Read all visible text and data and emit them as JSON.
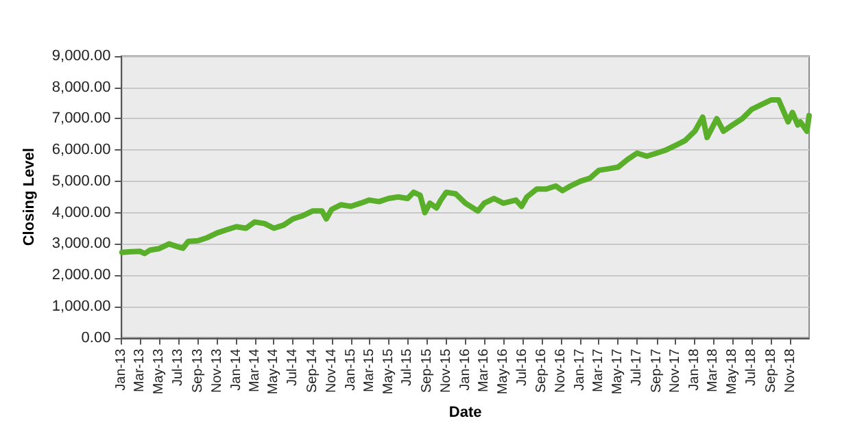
{
  "chart_data": {
    "type": "line",
    "xlabel": "Date",
    "ylabel": "Closing Level",
    "xlim": [
      "2013-01-01",
      "2018-12-31"
    ],
    "xticks": [
      {
        "value": "2013-01-01",
        "label": "Jan-13"
      },
      {
        "value": "2013-03-01",
        "label": "Mar-13"
      },
      {
        "value": "2013-05-01",
        "label": "May-13"
      },
      {
        "value": "2013-07-01",
        "label": "Jul-13"
      },
      {
        "value": "2013-09-01",
        "label": "Sep-13"
      },
      {
        "value": "2013-11-01",
        "label": "Nov-13"
      },
      {
        "value": "2014-01-01",
        "label": "Jan-14"
      },
      {
        "value": "2014-03-01",
        "label": "Mar-14"
      },
      {
        "value": "2014-05-01",
        "label": "May-14"
      },
      {
        "value": "2014-07-01",
        "label": "Jul-14"
      },
      {
        "value": "2014-09-01",
        "label": "Sep-14"
      },
      {
        "value": "2014-11-01",
        "label": "Nov-14"
      },
      {
        "value": "2015-01-01",
        "label": "Jan-15"
      },
      {
        "value": "2015-03-01",
        "label": "Mar-15"
      },
      {
        "value": "2015-05-01",
        "label": "May-15"
      },
      {
        "value": "2015-07-01",
        "label": "Jul-15"
      },
      {
        "value": "2015-09-01",
        "label": "Sep-15"
      },
      {
        "value": "2015-11-01",
        "label": "Nov-15"
      },
      {
        "value": "2016-01-01",
        "label": "Jan-16"
      },
      {
        "value": "2016-03-01",
        "label": "Mar-16"
      },
      {
        "value": "2016-05-01",
        "label": "May-16"
      },
      {
        "value": "2016-07-01",
        "label": "Jul-16"
      },
      {
        "value": "2016-09-01",
        "label": "Sep-16"
      },
      {
        "value": "2016-11-01",
        "label": "Nov-16"
      },
      {
        "value": "2017-01-01",
        "label": "Jan-17"
      },
      {
        "value": "2017-03-01",
        "label": "Mar-17"
      },
      {
        "value": "2017-05-01",
        "label": "May-17"
      },
      {
        "value": "2017-07-01",
        "label": "Jul-17"
      },
      {
        "value": "2017-09-01",
        "label": "Sep-17"
      },
      {
        "value": "2017-11-01",
        "label": "Nov-17"
      },
      {
        "value": "2018-01-01",
        "label": "Jan-18"
      },
      {
        "value": "2018-03-01",
        "label": "Mar-18"
      },
      {
        "value": "2018-05-01",
        "label": "May-18"
      },
      {
        "value": "2018-07-01",
        "label": "Jul-18"
      },
      {
        "value": "2018-09-01",
        "label": "Sep-18"
      },
      {
        "value": "2018-11-01",
        "label": "Nov-18"
      }
    ],
    "ylim": [
      0,
      9000
    ],
    "yticks": [
      {
        "value": 0,
        "label": "0.00"
      },
      {
        "value": 1000,
        "label": "1,000.00"
      },
      {
        "value": 2000,
        "label": "2,000.00"
      },
      {
        "value": 3000,
        "label": "3,000.00"
      },
      {
        "value": 4000,
        "label": "4,000.00"
      },
      {
        "value": 5000,
        "label": "5,000.00"
      },
      {
        "value": 6000,
        "label": "6,000.00"
      },
      {
        "value": 7000,
        "label": "7,000.00"
      },
      {
        "value": 8000,
        "label": "8,000.00"
      },
      {
        "value": 9000,
        "label": "9,000.00"
      }
    ],
    "grid": "y",
    "marker": "none",
    "line_style": "solid",
    "series": [
      {
        "color": "#5aaf2a",
        "x": [
          "2013-01-02",
          "2013-02-01",
          "2013-03-01",
          "2013-03-15",
          "2013-04-01",
          "2013-05-01",
          "2013-06-01",
          "2013-07-01",
          "2013-07-15",
          "2013-08-01",
          "2013-09-01",
          "2013-10-01",
          "2013-11-01",
          "2013-12-01",
          "2014-01-01",
          "2014-02-01",
          "2014-03-01",
          "2014-04-01",
          "2014-05-01",
          "2014-06-01",
          "2014-07-01",
          "2014-08-01",
          "2014-09-01",
          "2014-10-01",
          "2014-10-15",
          "2014-11-01",
          "2014-12-01",
          "2015-01-01",
          "2015-02-01",
          "2015-03-01",
          "2015-04-01",
          "2015-05-01",
          "2015-06-01",
          "2015-07-01",
          "2015-07-20",
          "2015-08-10",
          "2015-08-25",
          "2015-09-10",
          "2015-10-01",
          "2015-10-15",
          "2015-11-01",
          "2015-12-01",
          "2016-01-01",
          "2016-02-10",
          "2016-03-01",
          "2016-04-01",
          "2016-05-01",
          "2016-06-10",
          "2016-06-28",
          "2016-07-15",
          "2016-08-15",
          "2016-09-15",
          "2016-10-15",
          "2016-11-05",
          "2016-12-01",
          "2017-01-01",
          "2017-02-01",
          "2017-03-01",
          "2017-04-01",
          "2017-05-01",
          "2017-06-01",
          "2017-07-01",
          "2017-08-01",
          "2017-09-01",
          "2017-10-01",
          "2017-11-01",
          "2017-12-01",
          "2018-01-01",
          "2018-01-26",
          "2018-02-09",
          "2018-03-12",
          "2018-04-02",
          "2018-05-01",
          "2018-06-01",
          "2018-07-01",
          "2018-08-01",
          "2018-09-01",
          "2018-09-25",
          "2018-10-25",
          "2018-11-08",
          "2018-11-25",
          "2018-12-03",
          "2018-12-24",
          "2018-12-31"
        ],
        "values": [
          2730,
          2750,
          2760,
          2690,
          2800,
          2850,
          3000,
          2900,
          2860,
          3080,
          3100,
          3200,
          3350,
          3450,
          3550,
          3500,
          3700,
          3650,
          3500,
          3600,
          3800,
          3900,
          4050,
          4050,
          3800,
          4100,
          4250,
          4200,
          4300,
          4400,
          4350,
          4450,
          4500,
          4450,
          4650,
          4550,
          4000,
          4300,
          4150,
          4400,
          4650,
          4600,
          4300,
          4050,
          4300,
          4450,
          4300,
          4400,
          4200,
          4500,
          4750,
          4750,
          4850,
          4700,
          4850,
          5000,
          5100,
          5350,
          5400,
          5450,
          5700,
          5900,
          5800,
          5900,
          6000,
          6150,
          6300,
          6600,
          7050,
          6400,
          7000,
          6600,
          6800,
          7000,
          7300,
          7450,
          7600,
          7600,
          6900,
          7200,
          6800,
          6900,
          6600,
          7100
        ]
      }
    ]
  }
}
